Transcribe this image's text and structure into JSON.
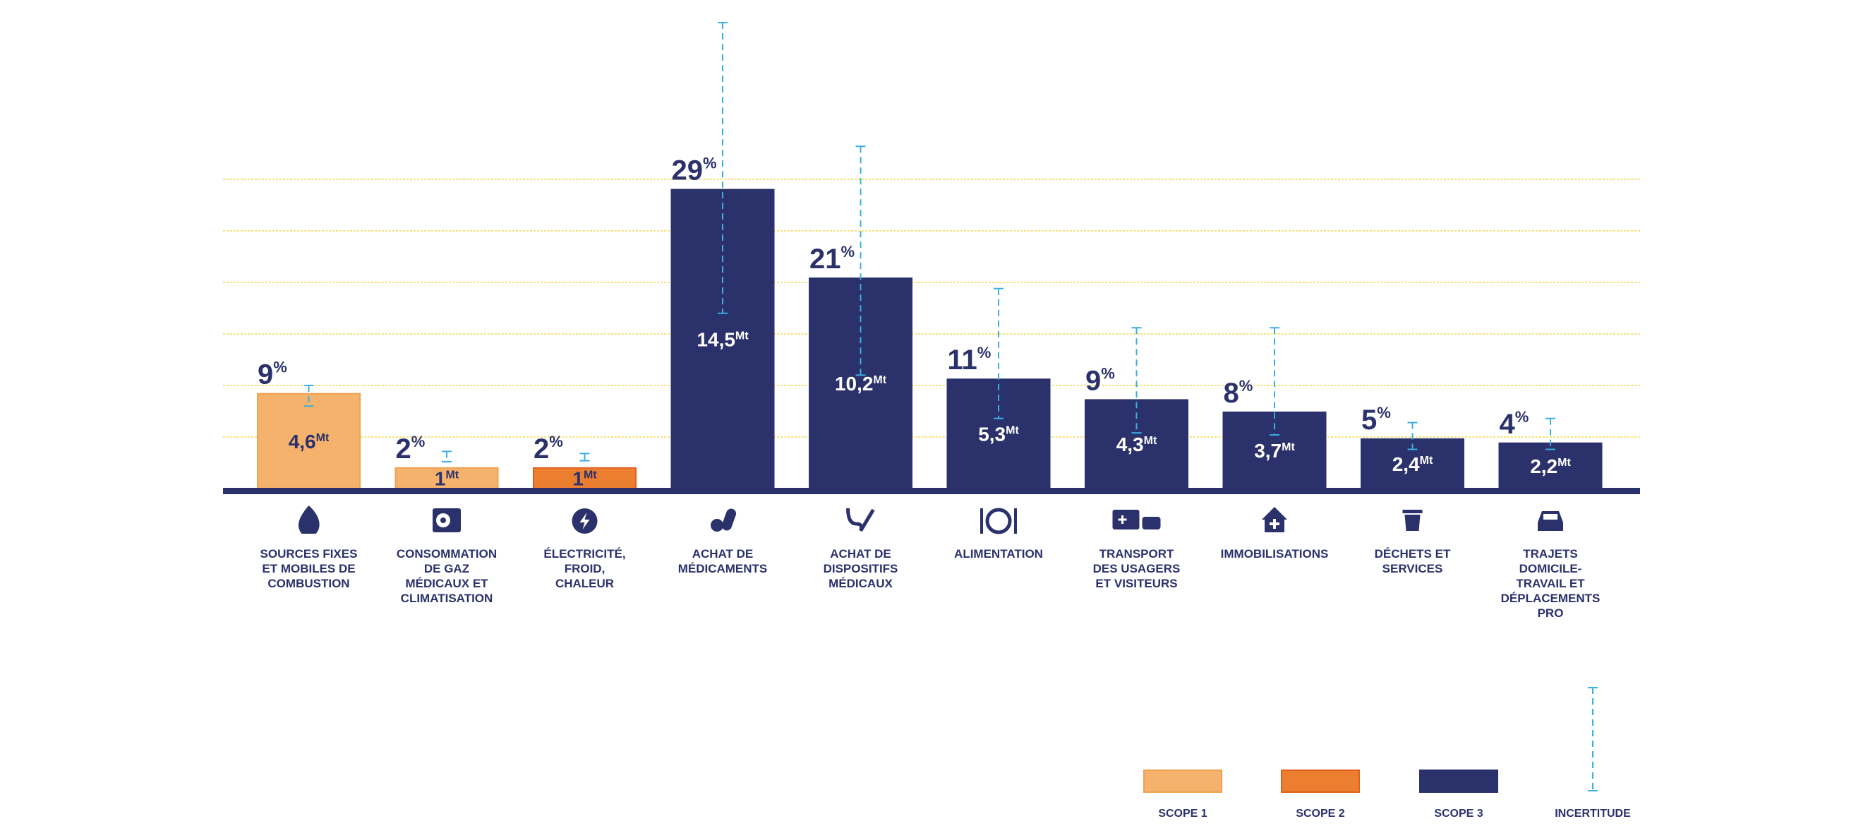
{
  "chart_data": {
    "type": "bar",
    "title": "",
    "xlabel": "",
    "ylabel": "",
    "unit": "Mt",
    "ylim": [
      0,
      15.5
    ],
    "grid": true,
    "grid_values": [
      2.5,
      5,
      7.5,
      10,
      12.5,
      15
    ],
    "legend_placement": "bottom-right",
    "categories": [
      {
        "label": [
          "SOURCES FIXES",
          "ET MOBILES DE",
          "COMBUSTION"
        ],
        "icon": "flame-icon",
        "scope": "scope1",
        "value": 4.6,
        "value_label": "4,6",
        "percent": "9",
        "error": [
          4.0,
          5.0
        ]
      },
      {
        "label": [
          "CONSOMMATION",
          "DE GAZ",
          "MÉDICAUX ET",
          "CLIMATISATION"
        ],
        "icon": "air-conditioner-icon",
        "scope": "scope1",
        "value": 1,
        "value_label": "1",
        "percent": "2",
        "error": [
          1.3,
          1.8
        ]
      },
      {
        "label": [
          "ÉLECTRICITÉ,",
          "FROID,",
          "CHALEUR"
        ],
        "icon": "lightning-icon",
        "scope": "scope2",
        "value": 1,
        "value_label": "1",
        "percent": "2",
        "error": [
          1.35,
          1.7
        ]
      },
      {
        "label": [
          "ACHAT DE",
          "MÉDICAMENTS"
        ],
        "icon": "pills-icon",
        "scope": "scope3",
        "value": 14.5,
        "value_label": "14,5",
        "percent": "29",
        "error": [
          8.5,
          22.6
        ]
      },
      {
        "label": [
          "ACHAT DE",
          "DISPOSITIFS",
          "MÉDICAUX"
        ],
        "icon": "stethoscope-icon",
        "scope": "scope3",
        "value": 10.2,
        "value_label": "10,2",
        "percent": "21",
        "error": [
          5.5,
          16.6
        ]
      },
      {
        "label": [
          "ALIMENTATION"
        ],
        "icon": "plate-icon",
        "scope": "scope3",
        "value": 5.3,
        "value_label": "5,3",
        "percent": "11",
        "error": [
          3.4,
          9.7
        ]
      },
      {
        "label": [
          "TRANSPORT",
          "DES USAGERS",
          "ET VISITEURS"
        ],
        "icon": "ambulance-car-icon",
        "scope": "scope3",
        "value": 4.3,
        "value_label": "4,3",
        "percent": "9",
        "error": [
          2.7,
          7.8
        ]
      },
      {
        "label": [
          "IMMOBILISATIONS"
        ],
        "icon": "hospital-building-icon",
        "scope": "scope3",
        "value": 3.7,
        "value_label": "3,7",
        "percent": "8",
        "error": [
          2.6,
          7.8
        ]
      },
      {
        "label": [
          "DÉCHETS ET",
          "SERVICES"
        ],
        "icon": "trash-icon",
        "scope": "scope3",
        "value": 2.4,
        "value_label": "2,4",
        "percent": "5",
        "error": [
          1.9,
          3.2
        ]
      },
      {
        "label": [
          "TRAJETS",
          "DOMICILE-",
          "TRAVAIL ET",
          "DÉPLACEMENTS",
          "PRO"
        ],
        "icon": "car-icon",
        "scope": "scope3",
        "value": 2.2,
        "value_label": "2,2",
        "percent": "4",
        "error": [
          1.9,
          3.4
        ]
      }
    ],
    "percent_suffix": "%",
    "legend": [
      {
        "key": "scope1",
        "label": "SCOPE 1"
      },
      {
        "key": "scope2",
        "label": "SCOPE 2"
      },
      {
        "key": "scope3",
        "label": "SCOPE 3"
      },
      {
        "key": "uncertainty",
        "label": "INCERTITUDE"
      }
    ]
  },
  "colors": {
    "scope1": "#F4B26C",
    "scope1_border": "#F0A050",
    "scope2": "#EC7E30",
    "scope2_border": "#E0601E",
    "scope3": "#2B316B",
    "uncertainty": "#3AAFE0",
    "grid": "#F7E27A",
    "text": "#2B316B"
  }
}
